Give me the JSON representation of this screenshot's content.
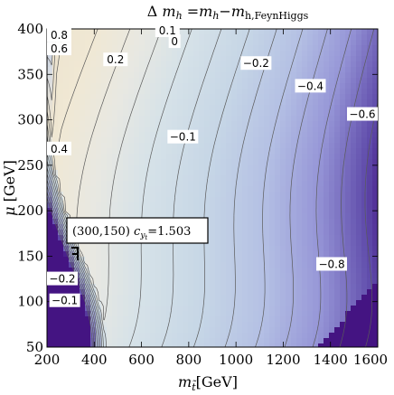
{
  "chart_data": {
    "type": "contour",
    "title": {
      "prefix": "Δ",
      "m": "m",
      "h": "h",
      "eq": " =",
      "minus": "−",
      "sub2": "h,FeynHiggs"
    },
    "xlabel": {
      "m": "m",
      "sub": "t̃",
      "unit": "[GeV]"
    },
    "ylabel": {
      "mu": "μ",
      "unit": " [GeV]"
    },
    "xlim": [
      200,
      1600
    ],
    "ylim": [
      50,
      400
    ],
    "x_ticks": [
      "200",
      "400",
      "600",
      "800",
      "1000",
      "1200",
      "1400",
      "1600"
    ],
    "y_ticks": [
      "50",
      "100",
      "150",
      "200",
      "250",
      "300",
      "350",
      "400"
    ],
    "levels": [
      -0.9,
      -0.8,
      -0.7,
      -0.6,
      -0.5,
      -0.4,
      -0.3,
      -0.2,
      -0.1,
      0,
      0.1,
      0.2,
      0.3,
      0.4,
      0.5,
      0.6,
      0.7,
      0.8
    ],
    "contour_labels": [
      {
        "text": "0.8",
        "x": 218,
        "y": 393
      },
      {
        "text": "0.6",
        "x": 218,
        "y": 378
      },
      {
        "text": "0.4",
        "x": 220,
        "y": 268
      },
      {
        "text": "0.2",
        "x": 490,
        "y": 366
      },
      {
        "text": "0.1",
        "x": 710,
        "y": 398
      },
      {
        "text": "0",
        "x": 740,
        "y": 386
      },
      {
        "text": "−0.2",
        "x": 1085,
        "y": 362
      },
      {
        "text": "−0.4",
        "x": 1315,
        "y": 337
      },
      {
        "text": "−0.6",
        "x": 1575,
        "y": 306
      },
      {
        "text": "−0.1",
        "x": 775,
        "y": 281
      },
      {
        "text": "−0.8",
        "x": 1405,
        "y": 141
      },
      {
        "text": "−0.2",
        "x": 228,
        "y": 125
      },
      {
        "text": "−0.1",
        "x": 275,
        "y": 101
      }
    ],
    "annotation": {
      "point": "(300,150)",
      "c": "c",
      "sub": "y",
      "subsub": "t",
      "value": "=1.503"
    }
  }
}
